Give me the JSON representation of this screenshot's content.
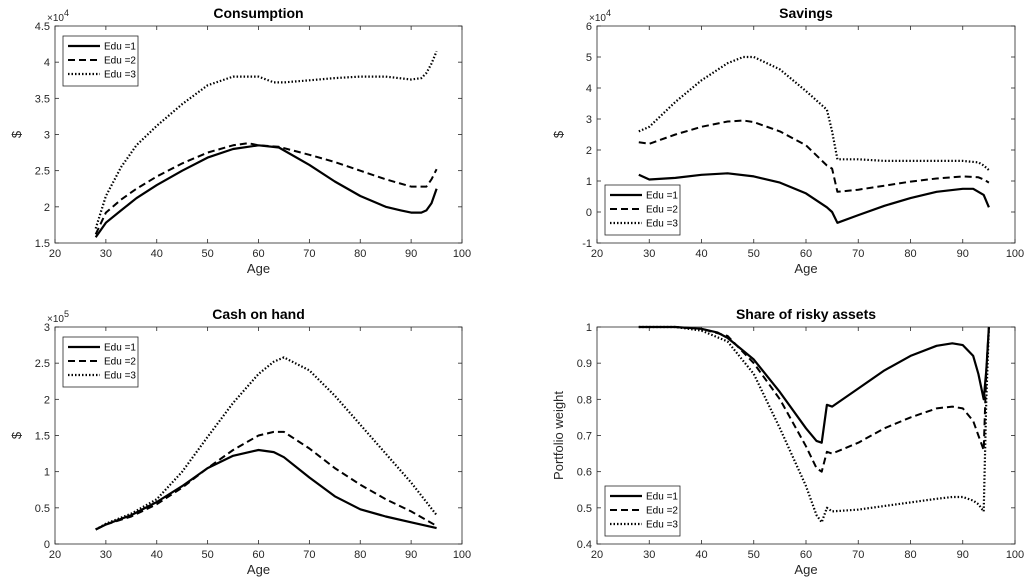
{
  "chart_data": [
    {
      "type": "line",
      "title": "Consumption",
      "xlabel": "Age",
      "ylabel": "$",
      "y_exponent": "×10",
      "y_exponent_power": "4",
      "xlim": [
        20,
        100
      ],
      "ylim": [
        1.5,
        4.5
      ],
      "xticks": [
        "20",
        "30",
        "40",
        "50",
        "60",
        "70",
        "80",
        "90",
        "100"
      ],
      "yticks": [
        "1.5",
        "2",
        "2.5",
        "3",
        "3.5",
        "4",
        "4.5"
      ],
      "legend_position": "top-left",
      "series": [
        {
          "name": "Edu =1",
          "style": "solid",
          "x": [
            28,
            30,
            33,
            36,
            40,
            45,
            50,
            55,
            60,
            64,
            70,
            75,
            80,
            85,
            88,
            90,
            92,
            93,
            94,
            95
          ],
          "y": [
            1.58,
            1.78,
            1.95,
            2.12,
            2.3,
            2.5,
            2.68,
            2.8,
            2.85,
            2.82,
            2.58,
            2.35,
            2.15,
            2.0,
            1.95,
            1.92,
            1.92,
            1.95,
            2.05,
            2.25
          ]
        },
        {
          "name": "Edu =2",
          "style": "dashed",
          "x": [
            28,
            30,
            33,
            36,
            40,
            45,
            50,
            55,
            58,
            60,
            64,
            70,
            75,
            80,
            85,
            90,
            93,
            94,
            95
          ],
          "y": [
            1.62,
            1.92,
            2.1,
            2.25,
            2.42,
            2.6,
            2.75,
            2.85,
            2.88,
            2.85,
            2.83,
            2.72,
            2.62,
            2.5,
            2.38,
            2.28,
            2.28,
            2.38,
            2.52
          ]
        },
        {
          "name": "Edu =3",
          "style": "dotted",
          "x": [
            28,
            30,
            33,
            36,
            40,
            45,
            50,
            55,
            60,
            63,
            65,
            70,
            75,
            80,
            85,
            90,
            92,
            93,
            94,
            95
          ],
          "y": [
            1.7,
            2.15,
            2.55,
            2.85,
            3.12,
            3.42,
            3.68,
            3.8,
            3.8,
            3.72,
            3.72,
            3.75,
            3.78,
            3.8,
            3.8,
            3.76,
            3.78,
            3.85,
            3.98,
            4.15
          ]
        }
      ]
    },
    {
      "type": "line",
      "title": "Savings",
      "xlabel": "Age",
      "ylabel": "$",
      "y_exponent": "×10",
      "y_exponent_power": "4",
      "xlim": [
        20,
        100
      ],
      "ylim": [
        -1,
        6
      ],
      "xticks": [
        "20",
        "30",
        "40",
        "50",
        "60",
        "70",
        "80",
        "90",
        "100"
      ],
      "yticks": [
        "-1",
        "0",
        "1",
        "2",
        "3",
        "4",
        "5",
        "6"
      ],
      "legend_position": "bottom-left",
      "series": [
        {
          "name": "Edu =1",
          "style": "solid",
          "x": [
            28,
            30,
            35,
            40,
            45,
            50,
            55,
            60,
            64,
            65,
            66,
            70,
            75,
            80,
            85,
            90,
            92,
            94,
            95
          ],
          "y": [
            1.2,
            1.05,
            1.1,
            1.2,
            1.25,
            1.15,
            0.95,
            0.6,
            0.15,
            0.0,
            -0.35,
            -0.1,
            0.2,
            0.45,
            0.65,
            0.75,
            0.75,
            0.55,
            0.15
          ]
        },
        {
          "name": "Edu =2",
          "style": "dashed",
          "x": [
            28,
            30,
            35,
            40,
            45,
            48,
            50,
            55,
            60,
            64,
            65,
            66,
            70,
            75,
            80,
            85,
            90,
            93,
            94,
            95
          ],
          "y": [
            2.25,
            2.2,
            2.5,
            2.75,
            2.92,
            2.95,
            2.9,
            2.6,
            2.15,
            1.5,
            1.4,
            0.65,
            0.72,
            0.85,
            0.98,
            1.08,
            1.15,
            1.12,
            1.05,
            0.95
          ]
        },
        {
          "name": "Edu =3",
          "style": "dotted",
          "x": [
            28,
            30,
            35,
            40,
            45,
            48,
            50,
            55,
            60,
            64,
            65,
            66,
            70,
            75,
            80,
            85,
            90,
            93,
            94,
            95
          ],
          "y": [
            2.6,
            2.75,
            3.55,
            4.25,
            4.8,
            5.0,
            5.0,
            4.6,
            3.9,
            3.3,
            2.6,
            1.7,
            1.7,
            1.65,
            1.65,
            1.65,
            1.65,
            1.6,
            1.5,
            1.35
          ]
        }
      ]
    },
    {
      "type": "line",
      "title": "Cash on hand",
      "xlabel": "Age",
      "ylabel": "$",
      "y_exponent": "×10",
      "y_exponent_power": "5",
      "xlim": [
        20,
        100
      ],
      "ylim": [
        0,
        3
      ],
      "xticks": [
        "20",
        "30",
        "40",
        "50",
        "60",
        "70",
        "80",
        "90",
        "100"
      ],
      "yticks": [
        "0",
        "0.5",
        "1",
        "1.5",
        "2",
        "2.5",
        "3"
      ],
      "legend_position": "top-left",
      "series": [
        {
          "name": "Edu =1",
          "style": "solid",
          "x": [
            28,
            30,
            35,
            40,
            45,
            50,
            55,
            60,
            63,
            65,
            70,
            75,
            80,
            85,
            90,
            95
          ],
          "y": [
            0.2,
            0.27,
            0.4,
            0.58,
            0.8,
            1.05,
            1.22,
            1.3,
            1.27,
            1.2,
            0.92,
            0.66,
            0.48,
            0.38,
            0.3,
            0.22
          ]
        },
        {
          "name": "Edu =2",
          "style": "dashed",
          "x": [
            28,
            30,
            35,
            40,
            45,
            50,
            55,
            60,
            63,
            65,
            70,
            75,
            80,
            85,
            90,
            95
          ],
          "y": [
            0.2,
            0.27,
            0.38,
            0.55,
            0.78,
            1.05,
            1.3,
            1.5,
            1.55,
            1.55,
            1.32,
            1.05,
            0.82,
            0.62,
            0.45,
            0.25
          ]
        },
        {
          "name": "Edu =3",
          "style": "dotted",
          "x": [
            28,
            30,
            35,
            40,
            45,
            50,
            55,
            60,
            63,
            65,
            70,
            75,
            80,
            85,
            90,
            95
          ],
          "y": [
            0.2,
            0.28,
            0.42,
            0.62,
            1.0,
            1.48,
            1.95,
            2.35,
            2.52,
            2.58,
            2.4,
            2.05,
            1.65,
            1.25,
            0.85,
            0.4
          ]
        }
      ]
    },
    {
      "type": "line",
      "title": "Share of risky assets",
      "xlabel": "Age",
      "ylabel": "Portfolio weight",
      "y_exponent": "",
      "y_exponent_power": "",
      "xlim": [
        20,
        100
      ],
      "ylim": [
        0.4,
        1
      ],
      "xticks": [
        "20",
        "30",
        "40",
        "50",
        "60",
        "70",
        "80",
        "90",
        "100"
      ],
      "yticks": [
        "0.4",
        "0.5",
        "0.6",
        "0.7",
        "0.8",
        "0.9",
        "1"
      ],
      "legend_position": "bottom-left",
      "series": [
        {
          "name": "Edu =1",
          "style": "solid",
          "x": [
            28,
            35,
            40,
            43,
            45,
            50,
            55,
            60,
            62,
            63,
            64,
            65,
            70,
            75,
            80,
            85,
            88,
            90,
            92,
            93,
            94,
            94.5,
            95
          ],
          "y": [
            1.0,
            1.0,
            0.995,
            0.985,
            0.97,
            0.91,
            0.82,
            0.72,
            0.685,
            0.68,
            0.785,
            0.78,
            0.83,
            0.88,
            0.92,
            0.948,
            0.955,
            0.95,
            0.92,
            0.87,
            0.8,
            0.88,
            1.0
          ]
        },
        {
          "name": "Edu =2",
          "style": "dashed",
          "x": [
            28,
            35,
            40,
            45,
            50,
            55,
            60,
            62,
            63,
            64,
            65,
            70,
            75,
            80,
            85,
            88,
            90,
            92,
            93,
            94,
            94.5,
            95
          ],
          "y": [
            1.0,
            1.0,
            0.995,
            0.975,
            0.9,
            0.8,
            0.67,
            0.61,
            0.6,
            0.655,
            0.65,
            0.68,
            0.72,
            0.75,
            0.775,
            0.78,
            0.775,
            0.74,
            0.7,
            0.66,
            0.88,
            1.0
          ]
        },
        {
          "name": "Edu =3",
          "style": "dotted",
          "x": [
            28,
            35,
            40,
            45,
            50,
            55,
            60,
            62,
            63,
            64,
            65,
            70,
            75,
            80,
            85,
            88,
            90,
            92,
            93,
            94,
            94.5,
            95
          ],
          "y": [
            1.0,
            1.0,
            0.99,
            0.96,
            0.87,
            0.72,
            0.56,
            0.48,
            0.46,
            0.5,
            0.49,
            0.495,
            0.505,
            0.515,
            0.525,
            0.53,
            0.53,
            0.52,
            0.51,
            0.49,
            0.8,
            1.0
          ]
        }
      ]
    }
  ]
}
